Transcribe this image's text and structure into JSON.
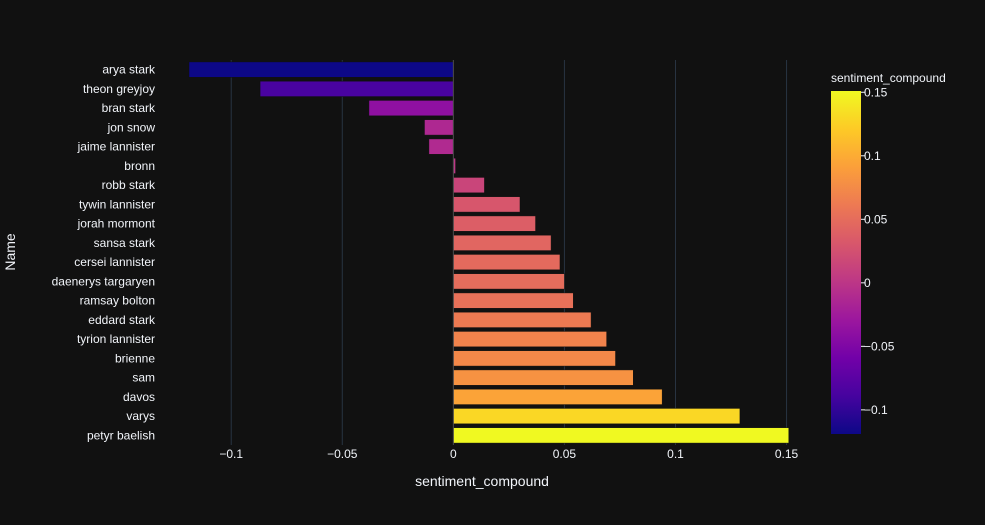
{
  "chart_data": {
    "type": "bar",
    "orientation": "horizontal",
    "xlabel": "sentiment_compound",
    "ylabel": "Name",
    "xlim": [
      -0.1235,
      0.1565
    ],
    "x_ticks": [
      -0.1,
      -0.05,
      0,
      0.05,
      0.1,
      0.15
    ],
    "x_tick_labels": [
      "−0.1",
      "−0.05",
      "0",
      "0.05",
      "0.1",
      "0.15"
    ],
    "grid": true,
    "colorscale": "plasma",
    "colorbar": {
      "title": "sentiment_compound",
      "range": [
        -0.119,
        0.151
      ],
      "ticks": [
        -0.1,
        -0.05,
        0,
        0.05,
        0.1,
        0.15
      ],
      "tick_labels": [
        "−0.1",
        "−0.05",
        "0",
        "0.05",
        "0.1",
        "0.15"
      ]
    },
    "categories": [
      "arya stark",
      "theon greyjoy",
      "bran stark",
      "jon snow",
      "jaime lannister",
      "bronn",
      "robb stark",
      "tywin lannister",
      "jorah mormont",
      "sansa stark",
      "cersei lannister",
      "daenerys targaryen",
      "ramsay bolton",
      "eddard stark",
      "tyrion lannister",
      "brienne",
      "sam",
      "davos",
      "varys",
      "petyr baelish"
    ],
    "values": [
      -0.119,
      -0.087,
      -0.038,
      -0.013,
      -0.011,
      0.001,
      0.014,
      0.03,
      0.037,
      0.044,
      0.048,
      0.05,
      0.054,
      0.062,
      0.069,
      0.073,
      0.081,
      0.094,
      0.129,
      0.151
    ]
  }
}
